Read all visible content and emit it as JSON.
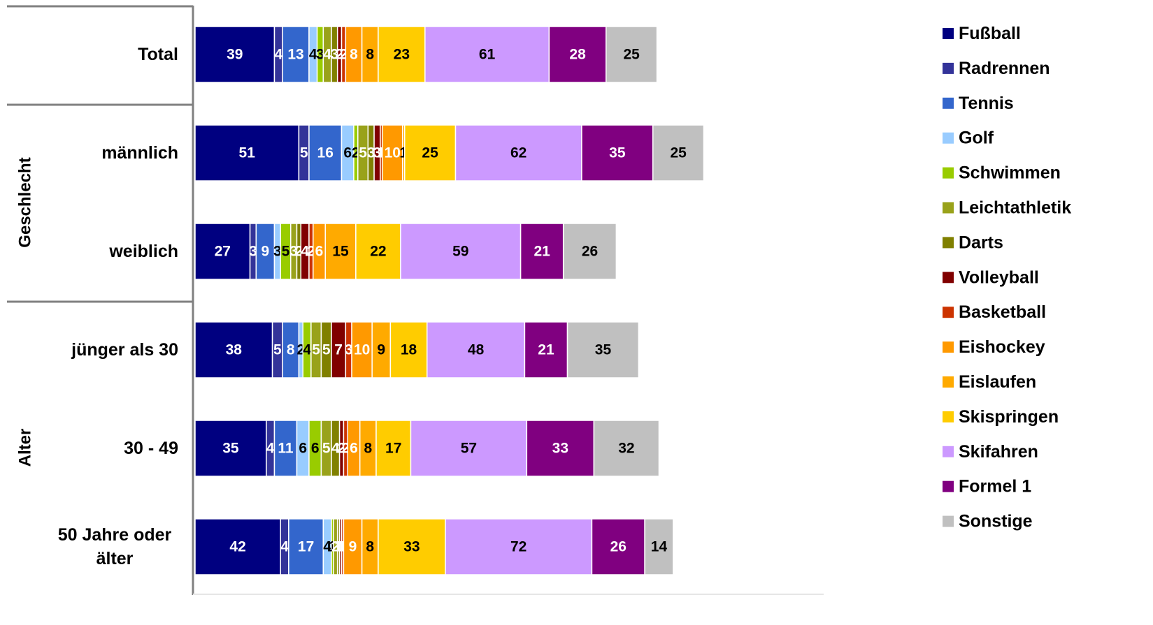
{
  "chart_data": {
    "type": "bar",
    "orientation": "horizontal",
    "stacked": true,
    "grid": false,
    "legend_position": "right",
    "groups": [
      {
        "label": "",
        "rows": [
          "Total"
        ]
      },
      {
        "label": "Geschlecht",
        "rows": [
          "männlich",
          "weiblich"
        ]
      },
      {
        "label": "Alter",
        "rows": [
          "jünger als 30",
          "30 - 49",
          "50 Jahre oder älter"
        ]
      }
    ],
    "categories": [
      "Total",
      "männlich",
      "weiblich",
      "jünger als 30",
      "30 - 49",
      "50 Jahre oder älter"
    ],
    "series": [
      {
        "name": "Fußball",
        "color": "#000080",
        "label_color": "#ffffff",
        "values": [
          39,
          51,
          27,
          38,
          35,
          42
        ]
      },
      {
        "name": "Radrennen",
        "color": "#333399",
        "label_color": "#ffffff",
        "values": [
          4,
          5,
          3,
          5,
          4,
          4
        ]
      },
      {
        "name": "Tennis",
        "color": "#3366cc",
        "label_color": "#ffffff",
        "values": [
          13,
          16,
          9,
          8,
          11,
          17
        ]
      },
      {
        "name": "Golf",
        "color": "#99ccff",
        "label_color": "#000000",
        "values": [
          4,
          6,
          3,
          2,
          6,
          4
        ]
      },
      {
        "name": "Schwimmen",
        "color": "#99cc00",
        "label_color": "#000000",
        "values": [
          3,
          2,
          5,
          4,
          6,
          1
        ]
      },
      {
        "name": "Leichtathletik",
        "color": "#99a21a",
        "label_color": "#ffffff",
        "values": [
          4,
          5,
          3,
          5,
          5,
          2
        ]
      },
      {
        "name": "Darts",
        "color": "#808000",
        "label_color": "#ffffff",
        "values": [
          3,
          3,
          2,
          5,
          4,
          1
        ]
      },
      {
        "name": "Volleyball",
        "color": "#800000",
        "label_color": "#ffffff",
        "values": [
          2,
          3,
          4,
          7,
          2,
          1
        ]
      },
      {
        "name": "Basketball",
        "color": "#cc3300",
        "label_color": "#ffffff",
        "values": [
          2,
          1,
          2,
          3,
          2,
          1
        ]
      },
      {
        "name": "Eishockey",
        "color": "#ff9900",
        "label_color": "#ffffff",
        "values": [
          8,
          10,
          6,
          10,
          6,
          9
        ]
      },
      {
        "name": "Eislaufen",
        "color": "#ffaa00",
        "label_color": "#000000",
        "values": [
          8,
          1,
          15,
          9,
          8,
          8
        ]
      },
      {
        "name": "Skispringen",
        "color": "#ffcc00",
        "label_color": "#000000",
        "values": [
          23,
          25,
          22,
          18,
          17,
          33
        ]
      },
      {
        "name": "Skifahren",
        "color": "#cc99ff",
        "label_color": "#000000",
        "values": [
          61,
          62,
          59,
          48,
          57,
          72
        ]
      },
      {
        "name": "Formel 1",
        "color": "#800080",
        "label_color": "#ffffff",
        "values": [
          28,
          35,
          21,
          21,
          33,
          26
        ]
      },
      {
        "name": "Sonstige",
        "color": "#c0c0c0",
        "label_color": "#000000",
        "values": [
          25,
          25,
          26,
          35,
          32,
          14
        ]
      }
    ]
  }
}
